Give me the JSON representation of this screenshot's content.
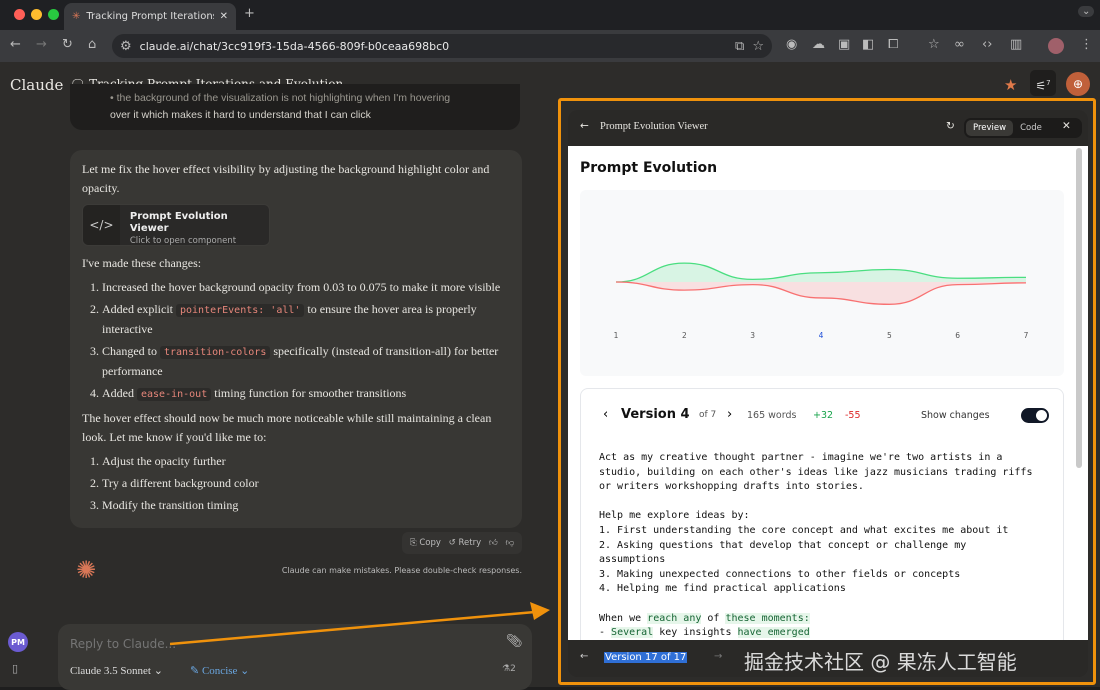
{
  "browser": {
    "tab_title": "Tracking Prompt Iterations and Evolution",
    "url": "claude.ai/chat/3cc919f3-15da-4566-809f-b0ceaa698bc0"
  },
  "app": {
    "brand": "Claude",
    "conversation_title": "Tracking Prompt Iterations and Evolution",
    "settings_badge": "7"
  },
  "user_message": {
    "bullet": "the background of the visualization is not highlighting when I'm hovering",
    "continuation": "over it which makes it hard to understand that I can click"
  },
  "reply": {
    "intro": "Let me fix the hover effect visibility by adjusting the background highlight color and opacity.",
    "artifact": {
      "title": "Prompt Evolution Viewer",
      "subtitle": "Click to open component"
    },
    "changes_heading": "I've made these changes:",
    "changes": [
      {
        "pre": "Increased the hover background opacity from 0.03 to 0.075 to make it more visible",
        "code": "",
        "post": ""
      },
      {
        "pre": "Added explicit ",
        "code": "pointerEvents: 'all'",
        "post": " to ensure the hover area is properly interactive"
      },
      {
        "pre": "Changed to ",
        "code": "transition-colors",
        "post": " specifically (instead of transition-all) for better performance"
      },
      {
        "pre": "Added ",
        "code": "ease-in-out",
        "post": " timing function for smoother transitions"
      }
    ],
    "outro": "The hover effect should now be much more noticeable while still maintaining a clean look. Let me know if you'd like me to:",
    "options": [
      "Adjust the opacity further",
      "Try a different background color",
      "Modify the transition timing"
    ],
    "actions": {
      "copy": "Copy",
      "retry": "Retry"
    }
  },
  "disclaimer": "Claude can make mistakes. Please double-check responses.",
  "composer": {
    "placeholder": "Reply to Claude...",
    "model": "Claude 3.5 Sonnet",
    "style": "Concise",
    "attachments": "2",
    "avatar": "PM"
  },
  "panel": {
    "title": "Prompt Evolution Viewer",
    "preview": "Preview",
    "code": "Code",
    "heading": "Prompt Evolution",
    "version_label": "Version 4",
    "of_label": "of 7",
    "words": "165 words",
    "added": "+32",
    "removed": "-55",
    "show_changes": "Show changes",
    "show_changes_on": true,
    "footer_version": "Version 17 of 17",
    "prompt_lines": [
      [
        {
          "t": "Act as my creative thought partner - imagine we're two artists in a"
        }
      ],
      [
        {
          "t": "studio, building on each other's ideas like jazz musicians trading riffs"
        }
      ],
      [
        {
          "t": "or writers workshopping drafts into stories."
        }
      ],
      [
        {
          "t": ""
        }
      ],
      [
        {
          "t": "Help me explore ideas by:"
        }
      ],
      [
        {
          "t": "1. First understanding the core concept and what excites me about it"
        }
      ],
      [
        {
          "t": "2. Asking questions that develop that concept or challenge my"
        }
      ],
      [
        {
          "t": "assumptions"
        }
      ],
      [
        {
          "t": "3. Making unexpected connections to other fields or concepts"
        }
      ],
      [
        {
          "t": "4. Helping me find practical applications"
        }
      ],
      [
        {
          "t": ""
        }
      ],
      [
        {
          "t": "When we "
        },
        {
          "t": "reach any",
          "h": true
        },
        {
          "t": " of "
        },
        {
          "t": "these moments:",
          "h": true
        }
      ],
      [
        {
          "t": "- "
        },
        {
          "t": "Several",
          "h": true
        },
        {
          "t": " key insights "
        },
        {
          "t": "have emerged",
          "h": true
        }
      ]
    ]
  },
  "chart_data": {
    "type": "area",
    "categories": [
      "1",
      "2",
      "3",
      "4",
      "5",
      "6",
      "7"
    ],
    "series": [
      {
        "values": [
          0,
          65,
          9,
          32,
          43,
          13,
          16
        ],
        "color": "#4ade80"
      },
      {
        "values": [
          0,
          -28,
          -9,
          -55,
          -77,
          -9,
          -3
        ],
        "color": "#f87171"
      }
    ],
    "highlighted_category": "4",
    "grid": false
  },
  "colors": {
    "accent": "#f0920c",
    "claude": "#d97757",
    "added": "#16a34a",
    "removed": "#dc2626"
  }
}
